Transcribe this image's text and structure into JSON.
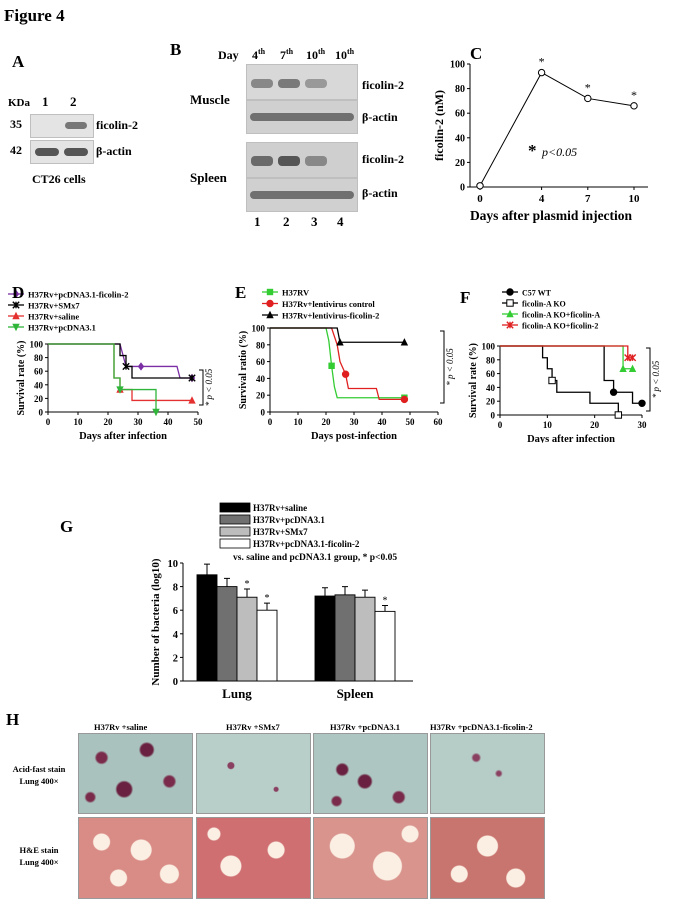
{
  "figure_title": "Figure 4",
  "panelA": {
    "letter": "A",
    "kda_label": "KDa",
    "lanes": [
      "1",
      "2"
    ],
    "rows": [
      {
        "kda": "35",
        "label": "ficolin-2"
      },
      {
        "kda": "42",
        "label": "β-actin"
      }
    ],
    "caption": "CT26 cells"
  },
  "panelB": {
    "letter": "B",
    "day_label": "Day",
    "days": [
      {
        "num": "4",
        "sup": "th"
      },
      {
        "num": "7",
        "sup": "th"
      },
      {
        "num": "10",
        "sup": "th"
      },
      {
        "num": "10",
        "sup": "th"
      }
    ],
    "groups": [
      "Muscle",
      "Spleen"
    ],
    "row_labels": [
      "ficolin-2",
      "β-actin",
      "ficolin-2",
      "β-actin"
    ],
    "lanes": [
      "1",
      "2",
      "3",
      "4"
    ]
  },
  "panelC": {
    "letter": "C",
    "annotation_star": "*",
    "annotation_p": "p<0.05"
  },
  "panelH": {
    "letter": "H",
    "columns": [
      "H37Rv +saline",
      "H37Rv +SMx7",
      "H37Rv +pcDNA3.1",
      "H37Rv +pcDNA3.1-ficolin-2"
    ],
    "rows": [
      {
        "line1": "Acid-fast stain",
        "line2": "Lung 400×"
      },
      {
        "line1": "H&E stain",
        "line2": "Lung 400×"
      }
    ]
  },
  "chart_data": [
    {
      "id": "C",
      "type": "line",
      "x": [
        0,
        4,
        7,
        10
      ],
      "y": [
        1,
        93,
        72,
        66
      ],
      "xticks": [
        "0",
        "4",
        "7",
        "10"
      ],
      "yticks": [
        "0",
        "20",
        "40",
        "60",
        "80",
        "100"
      ],
      "ylim": [
        0,
        100
      ],
      "xlabel": "Days after plasmid injection",
      "ylabel": "ficolin-2 (nM)",
      "stars": [
        "*",
        "*",
        "*"
      ]
    },
    {
      "id": "D",
      "type": "line",
      "xlabel": "Days after infection",
      "ylabel": "Survival rate (%)",
      "xticks": [
        "0",
        "10",
        "20",
        "30",
        "40",
        "50"
      ],
      "yticks": [
        "0",
        "20",
        "40",
        "60",
        "80",
        "100"
      ],
      "xlim": [
        0,
        50
      ],
      "ylim": [
        0,
        100
      ],
      "sig": "* p < 0.05",
      "series": [
        {
          "name": "H37Rv+pcDNA3.1-ficolin-2",
          "color": "#7b2fa5",
          "marker": "diamond",
          "steps": [
            [
              0,
              100
            ],
            [
              24,
              100
            ],
            [
              26,
              67
            ],
            [
              29,
              67
            ],
            [
              31,
              67
            ],
            [
              43,
              67
            ],
            [
              44,
              50
            ],
            [
              48,
              50
            ]
          ]
        },
        {
          "name": "H37Rv+SMx7",
          "color": "#000000",
          "marker": "x",
          "steps": [
            [
              0,
              100
            ],
            [
              24,
              100
            ],
            [
              24,
              83
            ],
            [
              26,
              83
            ],
            [
              26,
              67
            ],
            [
              28,
              67
            ],
            [
              28,
              50
            ],
            [
              48,
              50
            ]
          ]
        },
        {
          "name": "H37Rv+saline",
          "color": "#e53030",
          "marker": "triangle-up",
          "steps": [
            [
              0,
              100
            ],
            [
              22,
              100
            ],
            [
              22,
              50
            ],
            [
              24,
              50
            ],
            [
              24,
              33
            ],
            [
              28,
              33
            ],
            [
              28,
              17
            ],
            [
              48,
              17
            ]
          ]
        },
        {
          "name": "H37Rv+pcDNA3.1",
          "color": "#2fb53a",
          "marker": "triangle-down",
          "steps": [
            [
              0,
              100
            ],
            [
              22,
              100
            ],
            [
              22,
              50
            ],
            [
              24,
              50
            ],
            [
              24,
              33
            ],
            [
              36,
              33
            ],
            [
              36,
              0
            ],
            [
              36,
              0
            ]
          ]
        }
      ]
    },
    {
      "id": "E",
      "type": "line",
      "xlabel": "Days post-infection",
      "ylabel": "Survival ratio (%)",
      "xticks": [
        "0",
        "10",
        "20",
        "30",
        "40",
        "50",
        "60"
      ],
      "yticks": [
        "0",
        "20",
        "40",
        "60",
        "80",
        "100"
      ],
      "xlim": [
        0,
        60
      ],
      "ylim": [
        0,
        100
      ],
      "sig": "* p < 0.05",
      "series": [
        {
          "name": "H37RV",
          "color": "#33cc33",
          "marker": "square",
          "steps": [
            [
              0,
              100
            ],
            [
              20,
              100
            ],
            [
              21,
              85
            ],
            [
              22,
              55
            ],
            [
              23,
              30
            ],
            [
              24,
              17
            ],
            [
              48,
              17
            ]
          ]
        },
        {
          "name": "H37Rv+lentivirus control",
          "color": "#e02020",
          "marker": "circle",
          "steps": [
            [
              0,
              100
            ],
            [
              22,
              100
            ],
            [
              24,
              80
            ],
            [
              25,
              60
            ],
            [
              27,
              45
            ],
            [
              28,
              28
            ],
            [
              38,
              28
            ],
            [
              39,
              15
            ],
            [
              48,
              15
            ]
          ]
        },
        {
          "name": "H37Rv+lentivirus-ficolin-2",
          "color": "#000000",
          "marker": "triangle-up",
          "steps": [
            [
              0,
              100
            ],
            [
              24,
              100
            ],
            [
              25,
              83
            ],
            [
              48,
              83
            ]
          ]
        }
      ]
    },
    {
      "id": "F",
      "type": "line",
      "xlabel": "Days after infection",
      "ylabel": "Survival rate (%)",
      "xticks": [
        "0",
        "10",
        "20",
        "30"
      ],
      "yticks": [
        "0",
        "20",
        "40",
        "60",
        "80",
        "100"
      ],
      "xlim": [
        0,
        30
      ],
      "ylim": [
        0,
        100
      ],
      "sig": "* p < 0.05",
      "series": [
        {
          "name": "C57 WT",
          "color": "#000000",
          "marker": "circle",
          "steps": [
            [
              0,
              100
            ],
            [
              22,
              100
            ],
            [
              22,
              50
            ],
            [
              24,
              50
            ],
            [
              24,
              33
            ],
            [
              28,
              33
            ],
            [
              28,
              17
            ],
            [
              30,
              17
            ]
          ]
        },
        {
          "name": "ficolin-A KO",
          "color": "#000000",
          "marker": "square-open",
          "steps": [
            [
              0,
              100
            ],
            [
              9,
              100
            ],
            [
              9,
              83
            ],
            [
              10,
              83
            ],
            [
              10,
              67
            ],
            [
              11,
              67
            ],
            [
              11,
              50
            ],
            [
              12,
              50
            ],
            [
              12,
              33
            ],
            [
              19,
              33
            ],
            [
              19,
              17
            ],
            [
              25,
              17
            ],
            [
              25,
              0
            ]
          ]
        },
        {
          "name": "ficolin-A KO+ficolin-A",
          "color": "#33cc33",
          "marker": "triangle-up",
          "steps": [
            [
              0,
              100
            ],
            [
              26,
              100
            ],
            [
              26,
              67
            ],
            [
              28,
              67
            ]
          ]
        },
        {
          "name": "ficolin-A KO+ficolin-2",
          "color": "#e02020",
          "marker": "x",
          "steps": [
            [
              0,
              100
            ],
            [
              27,
              100
            ],
            [
              27,
              83
            ],
            [
              28,
              83
            ]
          ]
        }
      ]
    },
    {
      "id": "G",
      "type": "bar",
      "ylabel": "Number of bacteria (log10)",
      "note": "vs. saline and pcDNA3.1 group, * p<0.05",
      "categories": [
        "Lung",
        "Spleen"
      ],
      "ylim": [
        0,
        10
      ],
      "yticks": [
        "0",
        "2",
        "4",
        "6",
        "8",
        "10"
      ],
      "series": [
        {
          "name": "H37Rv+saline",
          "color": "#000000",
          "values": [
            9.0,
            7.2
          ],
          "err": [
            0.9,
            0.7
          ]
        },
        {
          "name": "H37Rv+pcDNA3.1",
          "color": "#707070",
          "values": [
            8.0,
            7.3
          ],
          "err": [
            0.7,
            0.7
          ]
        },
        {
          "name": "H37Rv+SMx7",
          "color": "#bdbdbd",
          "values": [
            7.1,
            7.1
          ],
          "err": [
            0.7,
            0.6
          ]
        },
        {
          "name": "H37Rv+pcDNA3.1-ficolin-2",
          "color": "#ffffff",
          "values": [
            6.0,
            5.9
          ],
          "err": [
            0.6,
            0.5
          ]
        }
      ],
      "stars": [
        "*",
        "*"
      ]
    }
  ]
}
